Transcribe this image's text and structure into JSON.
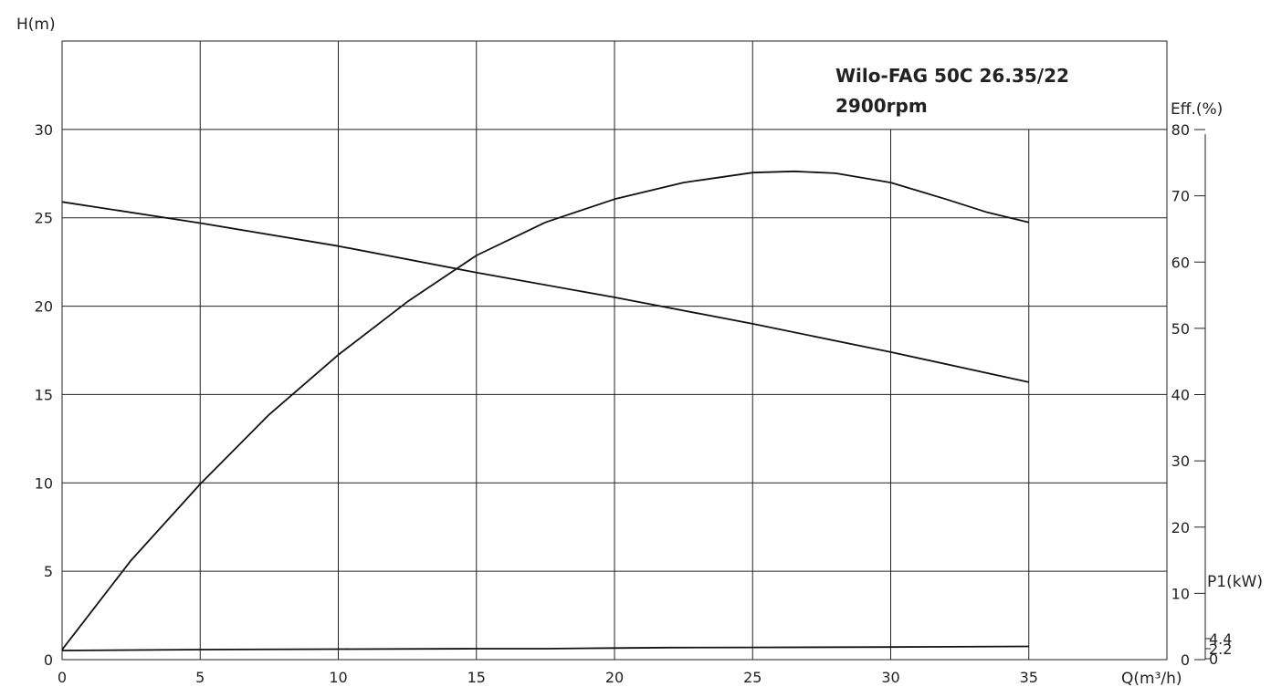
{
  "chart_data": {
    "type": "line",
    "title_line1": "Wilo-FAG 50C 26.35/22",
    "title_line2": "2900rpm",
    "xlabel": "Q(m³/h)",
    "ylabel_head": "H(m)",
    "ylabel_eff": "Eff.(%)",
    "ylabel_power": "P1(kW)",
    "x_ticks": [
      0,
      5,
      10,
      15,
      20,
      25,
      30,
      35
    ],
    "head_ticks": [
      0,
      5,
      10,
      15,
      20,
      25,
      30
    ],
    "eff_ticks": [
      0,
      10,
      20,
      30,
      40,
      50,
      60,
      70,
      80
    ],
    "power_ticks": [
      "0",
      "2.2",
      "4.4"
    ],
    "xlim": [
      0,
      40
    ],
    "head_ylim": [
      0,
      35
    ],
    "eff_ylim": [
      0,
      80
    ],
    "grid": true,
    "series": [
      {
        "axis": "head",
        "x": [
          0,
          5,
          10,
          15,
          20,
          25,
          30,
          35
        ],
        "y": [
          25.9,
          24.7,
          23.4,
          21.9,
          20.5,
          19.0,
          17.4,
          15.7
        ]
      },
      {
        "axis": "eff",
        "x": [
          0,
          2.5,
          5,
          7.5,
          10,
          12.5,
          15,
          17.5,
          20,
          22.5,
          25,
          26.5,
          28,
          30,
          32,
          33.5,
          35
        ],
        "y": [
          1.5,
          15,
          26.5,
          37,
          46,
          54,
          61,
          66,
          69.5,
          72,
          73.5,
          73.7,
          73.4,
          72,
          69.5,
          67.5,
          66
        ]
      },
      {
        "axis": "power",
        "x": [
          0,
          5,
          10,
          15,
          17.5,
          20,
          22,
          25,
          30,
          35
        ],
        "y": [
          0.3,
          0.4,
          0.45,
          0.5,
          0.5,
          0.57,
          0.62,
          0.64,
          0.68,
          0.75
        ]
      }
    ]
  }
}
